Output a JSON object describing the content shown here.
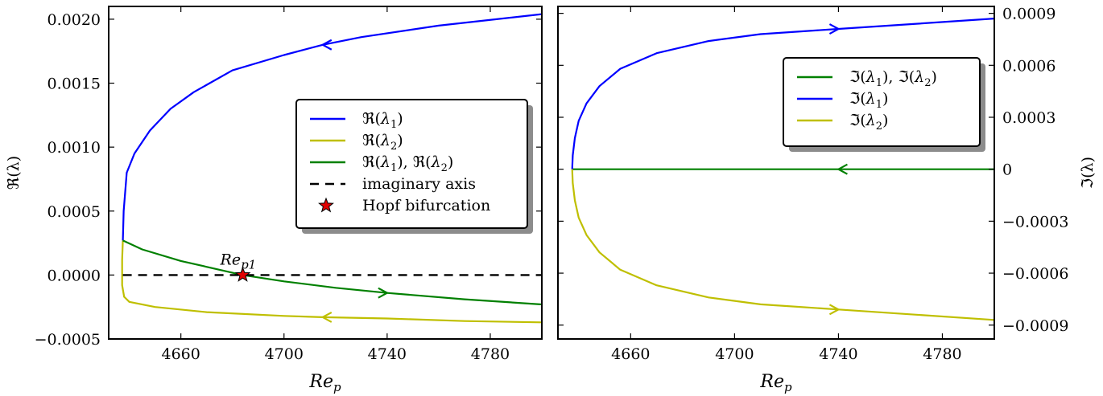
{
  "chart_data": [
    {
      "type": "line",
      "xlabel": "Re_p",
      "ylabel": "ℜ(λ)",
      "xlim": [
        4632,
        4800
      ],
      "ylim": [
        -0.0005,
        0.0021
      ],
      "xticks": [
        4660,
        4700,
        4740,
        4780
      ],
      "yticks": [
        -0.0005,
        0.0,
        0.0005,
        0.001,
        0.0015,
        0.002
      ],
      "ytick_labels": [
        "−0.0005",
        "0.0000",
        "0.0005",
        "0.0010",
        "0.0015",
        "0.0020"
      ],
      "xtick_labels": [
        "4660",
        "4700",
        "4740",
        "4780"
      ],
      "grid": false,
      "legend_placement": "center-right",
      "series": [
        {
          "name": "ℜ(λ1)",
          "color": "#0000ff",
          "x": [
            4637.5,
            4637.8,
            4639,
            4642,
            4648,
            4656,
            4665,
            4680,
            4700,
            4715,
            4730,
            4760,
            4800
          ],
          "values": [
            0.00027,
            0.0005,
            0.0008,
            0.00095,
            0.00113,
            0.0013,
            0.00143,
            0.0016,
            0.00172,
            0.0018,
            0.00186,
            0.00195,
            0.00204
          ]
        },
        {
          "name": "ℜ(λ2)",
          "color": "#bfbf00",
          "x": [
            4637.5,
            4637.2,
            4637.2,
            4638,
            4640,
            4650,
            4670,
            4700,
            4715,
            4740,
            4770,
            4800
          ],
          "values": [
            0.00027,
            0.00012,
            -8e-05,
            -0.00017,
            -0.00021,
            -0.00025,
            -0.00029,
            -0.00032,
            -0.00033,
            -0.00034,
            -0.00036,
            -0.00037
          ]
        },
        {
          "name": "ℜ(λ1), ℜ(λ2)",
          "color": "#008000",
          "x": [
            4637.5,
            4645,
            4660,
            4684,
            4700,
            4720,
            4740,
            4770,
            4800
          ],
          "values": [
            0.00027,
            0.0002,
            0.00011,
            0.0,
            -5e-05,
            -0.0001,
            -0.00014,
            -0.00019,
            -0.00023
          ]
        },
        {
          "name": "imaginary axis",
          "color": "#000000",
          "dashed": true,
          "x": [
            4637.5,
            4800
          ],
          "values": [
            0.0,
            0.0
          ]
        }
      ],
      "direction_arrows": [
        {
          "series": 0,
          "x": 4715,
          "dir": "left"
        },
        {
          "series": 1,
          "x": 4715,
          "dir": "left"
        },
        {
          "series": 2,
          "x": 4740,
          "dir": "right"
        }
      ],
      "marker": {
        "name": "Hopf bifurcation",
        "x": 4684,
        "y": 0.0,
        "color": "#e00000",
        "annotation": "Re_p1"
      }
    },
    {
      "type": "line",
      "xlabel": "Re_p",
      "ylabel": "ℑ(λ)",
      "xlim": [
        4632,
        4800
      ],
      "ylim": [
        -0.00098,
        0.00094
      ],
      "xticks": [
        4660,
        4700,
        4740,
        4780
      ],
      "xtick_labels": [
        "4660",
        "4700",
        "4740",
        "4780"
      ],
      "yticks": [
        -0.0009,
        -0.0006,
        -0.0003,
        0.0,
        0.0003,
        0.0006,
        0.0009
      ],
      "ytick_labels": [
        "−0.0009",
        "−0.0006",
        "−0.0003",
        "0",
        "0.0003",
        "0.0006",
        "0.0009"
      ],
      "yaxis_side": "right",
      "grid": false,
      "legend_placement": "top-right",
      "series": [
        {
          "name": "ℑ(λ1), ℑ(λ2)",
          "color": "#008000",
          "x": [
            4637.5,
            4800
          ],
          "values": [
            0.0,
            0.0
          ]
        },
        {
          "name": "ℑ(λ1)",
          "color": "#0000ff",
          "x": [
            4637.5,
            4637.7,
            4638.5,
            4640,
            4643,
            4648,
            4656,
            4670,
            4690,
            4710,
            4740,
            4770,
            4800
          ],
          "values": [
            0.0,
            8e-05,
            0.00018,
            0.00028,
            0.00038,
            0.00048,
            0.00058,
            0.00067,
            0.00074,
            0.00078,
            0.00081,
            0.00084,
            0.00087
          ]
        },
        {
          "name": "ℑ(λ2)",
          "color": "#bfbf00",
          "x": [
            4637.5,
            4637.7,
            4638.5,
            4640,
            4643,
            4648,
            4656,
            4670,
            4690,
            4710,
            4740,
            4770,
            4800
          ],
          "values": [
            0.0,
            -8e-05,
            -0.00018,
            -0.00028,
            -0.00038,
            -0.00048,
            -0.00058,
            -0.00067,
            -0.00074,
            -0.00078,
            -0.00081,
            -0.00084,
            -0.00087
          ]
        }
      ],
      "direction_arrows": [
        {
          "series": 0,
          "x": 4740,
          "dir": "left"
        },
        {
          "series": 1,
          "x": 4740,
          "dir": "right"
        },
        {
          "series": 2,
          "x": 4740,
          "dir": "right"
        }
      ]
    }
  ]
}
